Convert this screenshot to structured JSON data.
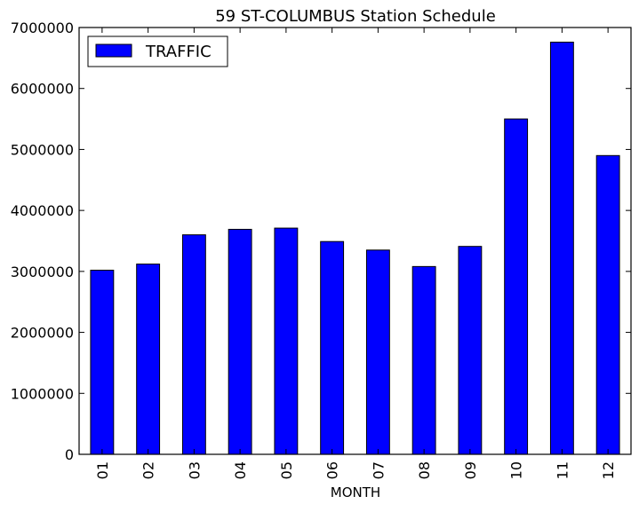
{
  "chart_data": {
    "type": "bar",
    "title": "59 ST-COLUMBUS Station Schedule",
    "xlabel": "MONTH",
    "ylabel": "",
    "categories": [
      "01",
      "02",
      "03",
      "04",
      "05",
      "06",
      "07",
      "08",
      "09",
      "10",
      "11",
      "12"
    ],
    "series": [
      {
        "name": "TRAFFIC",
        "values": [
          3020000,
          3120000,
          3600000,
          3690000,
          3710000,
          3490000,
          3350000,
          3080000,
          3410000,
          5500000,
          6760000,
          4900000
        ],
        "color": "#0000ff"
      }
    ],
    "ylim": [
      0,
      7000000
    ],
    "yticks": [
      0,
      1000000,
      2000000,
      3000000,
      4000000,
      5000000,
      6000000,
      7000000
    ],
    "ytick_labels": [
      "0",
      "1000000",
      "2000000",
      "3000000",
      "4000000",
      "5000000",
      "6000000",
      "7000000"
    ],
    "grid": false,
    "legend_position": "top-left"
  }
}
